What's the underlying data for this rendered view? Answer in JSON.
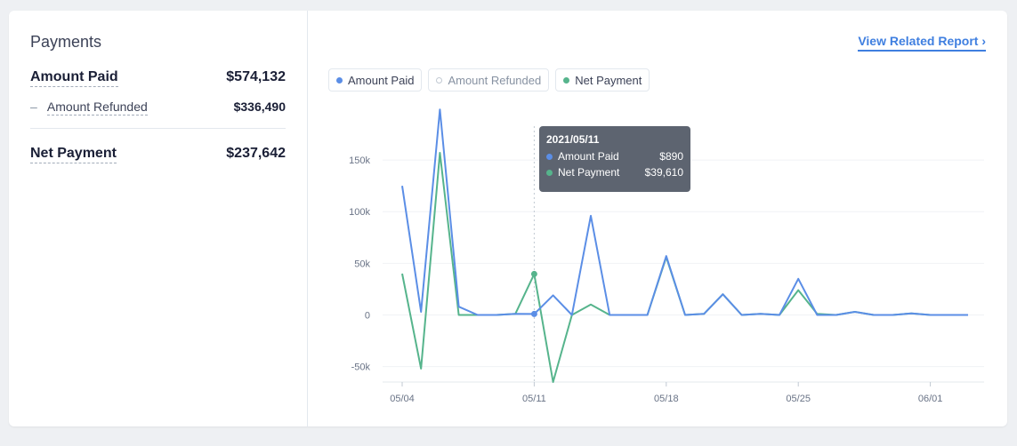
{
  "summary": {
    "title": "Payments",
    "amount_paid": {
      "label": "Amount Paid",
      "value": "$574,132"
    },
    "amount_refunded": {
      "label": "Amount Refunded",
      "value": "$336,490",
      "prefix": "–"
    },
    "net_payment": {
      "label": "Net Payment",
      "value": "$237,642"
    }
  },
  "header": {
    "report_link": "View Related Report ›"
  },
  "legend": [
    {
      "label": "Amount Paid",
      "color": "#5b8ee6",
      "active": true
    },
    {
      "label": "Amount Refunded",
      "color": "#ffffff",
      "active": false
    },
    {
      "label": "Net Payment",
      "color": "#56b48c",
      "active": true
    }
  ],
  "tooltip": {
    "date": "2021/05/11",
    "rows": [
      {
        "label": "Amount Paid",
        "value": "$890",
        "color": "#5b8ee6"
      },
      {
        "label": "Net Payment",
        "value": "$39,610",
        "color": "#56b48c"
      }
    ]
  },
  "chart_data": {
    "type": "line",
    "x": [
      "05/04",
      "05/05",
      "05/06",
      "05/07",
      "05/08",
      "05/09",
      "05/10",
      "05/11",
      "05/12",
      "05/13",
      "05/14",
      "05/15",
      "05/16",
      "05/17",
      "05/18",
      "05/19",
      "05/20",
      "05/21",
      "05/22",
      "05/23",
      "05/24",
      "05/25",
      "05/26",
      "05/27",
      "05/28",
      "05/29",
      "05/30",
      "05/31",
      "06/01",
      "06/02",
      "06/03"
    ],
    "x_ticks": [
      "05/04",
      "05/11",
      "05/18",
      "05/25",
      "06/01"
    ],
    "y_ticks": [
      "-50k",
      "0",
      "50k",
      "100k",
      "150k"
    ],
    "ylim": [
      -65000,
      200000
    ],
    "series": [
      {
        "name": "Amount Paid",
        "color": "#5b8ee6",
        "values": [
          125000,
          3000,
          199000,
          8000,
          0,
          0,
          1000,
          890,
          19000,
          0,
          96000,
          0,
          0,
          0,
          57000,
          0,
          1000,
          20000,
          0,
          1000,
          0,
          35000,
          0,
          0,
          3000,
          0,
          0,
          1500,
          0,
          0,
          0
        ]
      },
      {
        "name": "Net Payment",
        "color": "#56b48c",
        "values": [
          40000,
          -52000,
          157000,
          0,
          0,
          0,
          1000,
          39610,
          -65000,
          0,
          10000,
          0,
          0,
          0,
          56000,
          0,
          1000,
          20000,
          0,
          1000,
          0,
          24000,
          1000,
          0,
          3000,
          0,
          0,
          1500,
          0,
          0,
          0
        ]
      }
    ],
    "highlight": {
      "x": "05/11"
    },
    "grid": true
  }
}
